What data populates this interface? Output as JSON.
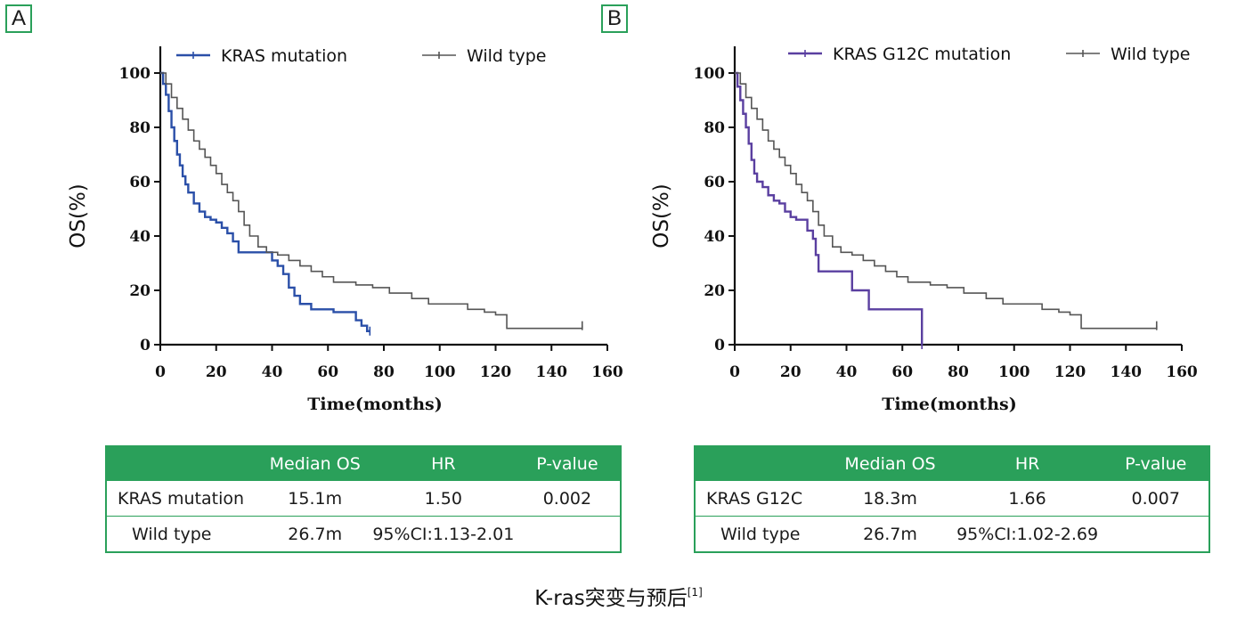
{
  "caption": {
    "text": "K-ras突变与预后",
    "ref": "[1]"
  },
  "panels": [
    {
      "letter": "A",
      "table": {
        "headers": [
          "",
          "Median OS",
          "HR",
          "P-value"
        ],
        "rows": [
          [
            "KRAS mutation",
            "15.1m",
            "1.50",
            "0.002"
          ],
          [
            "Wild type",
            "26.7m",
            "95%CI:1.13-2.01",
            ""
          ]
        ]
      }
    },
    {
      "letter": "B",
      "table": {
        "headers": [
          "",
          "Median OS",
          "HR",
          "P-value"
        ],
        "rows": [
          [
            "KRAS G12C",
            "18.3m",
            "1.66",
            "0.007"
          ],
          [
            "Wild type",
            "26.7m",
            "95%CI:1.02-2.69",
            ""
          ]
        ]
      }
    }
  ],
  "chart_data": [
    {
      "type": "line",
      "step": true,
      "xlabel": "Time(months)",
      "ylabel": "OS(%)",
      "xlim": [
        0,
        160
      ],
      "ylim": [
        0,
        100
      ],
      "xticks": [
        0,
        20,
        40,
        60,
        80,
        100,
        120,
        140,
        160
      ],
      "yticks": [
        0,
        20,
        40,
        60,
        80,
        100
      ],
      "legend_position": "top",
      "series": [
        {
          "name": "KRAS mutation",
          "color": "#2a4fa8",
          "x": [
            0,
            1,
            2,
            3,
            4,
            5,
            6,
            7,
            8,
            9,
            10,
            12,
            14,
            16,
            18,
            20,
            22,
            24,
            26,
            28,
            30,
            34,
            38,
            40,
            42,
            44,
            46,
            48,
            50,
            54,
            58,
            62,
            66,
            70,
            72,
            74,
            75
          ],
          "y": [
            100,
            96,
            92,
            86,
            80,
            75,
            70,
            66,
            62,
            59,
            56,
            52,
            49,
            47,
            46,
            45,
            43,
            41,
            38,
            34,
            34,
            34,
            34,
            31,
            29,
            26,
            21,
            18,
            15,
            13,
            13,
            12,
            12,
            9,
            7,
            5,
            5
          ]
        },
        {
          "name": "Wild type",
          "color": "#555555",
          "x": [
            0,
            2,
            4,
            6,
            8,
            10,
            12,
            14,
            16,
            18,
            20,
            22,
            24,
            26,
            28,
            30,
            32,
            35,
            38,
            42,
            46,
            50,
            54,
            58,
            62,
            66,
            70,
            76,
            82,
            90,
            96,
            104,
            110,
            116,
            120,
            124,
            130,
            140,
            151
          ],
          "y": [
            100,
            96,
            91,
            87,
            83,
            79,
            75,
            72,
            69,
            66,
            63,
            59,
            56,
            53,
            49,
            44,
            40,
            36,
            34,
            33,
            31,
            29,
            27,
            25,
            23,
            23,
            22,
            21,
            19,
            17,
            15,
            15,
            13,
            12,
            11,
            6,
            6,
            6,
            7
          ]
        }
      ]
    },
    {
      "type": "line",
      "step": true,
      "xlabel": "Time(months)",
      "ylabel": "OS(%)",
      "xlim": [
        0,
        160
      ],
      "ylim": [
        0,
        100
      ],
      "xticks": [
        0,
        20,
        40,
        60,
        80,
        100,
        120,
        140,
        160
      ],
      "yticks": [
        0,
        20,
        40,
        60,
        80,
        100
      ],
      "legend_position": "top",
      "series": [
        {
          "name": "KRAS G12C mutation",
          "color": "#5a3fa0",
          "x": [
            0,
            1,
            2,
            3,
            4,
            5,
            6,
            7,
            8,
            10,
            12,
            14,
            16,
            18,
            20,
            22,
            24,
            26,
            28,
            29,
            30,
            36,
            42,
            44,
            48,
            50,
            60,
            67
          ],
          "y": [
            100,
            95,
            90,
            85,
            80,
            74,
            68,
            63,
            60,
            58,
            55,
            53,
            52,
            49,
            47,
            46,
            46,
            42,
            39,
            33,
            27,
            27,
            20,
            20,
            13,
            13,
            13,
            0
          ]
        },
        {
          "name": "Wild type",
          "color": "#555555",
          "x": [
            0,
            2,
            4,
            6,
            8,
            10,
            12,
            14,
            16,
            18,
            20,
            22,
            24,
            26,
            28,
            30,
            32,
            35,
            38,
            42,
            46,
            50,
            54,
            58,
            62,
            66,
            70,
            76,
            82,
            90,
            96,
            104,
            110,
            116,
            120,
            124,
            130,
            140,
            151
          ],
          "y": [
            100,
            96,
            91,
            87,
            83,
            79,
            75,
            72,
            69,
            66,
            63,
            59,
            56,
            53,
            49,
            44,
            40,
            36,
            34,
            33,
            31,
            29,
            27,
            25,
            23,
            23,
            22,
            21,
            19,
            17,
            15,
            15,
            13,
            12,
            11,
            6,
            6,
            6,
            7
          ]
        }
      ]
    }
  ]
}
